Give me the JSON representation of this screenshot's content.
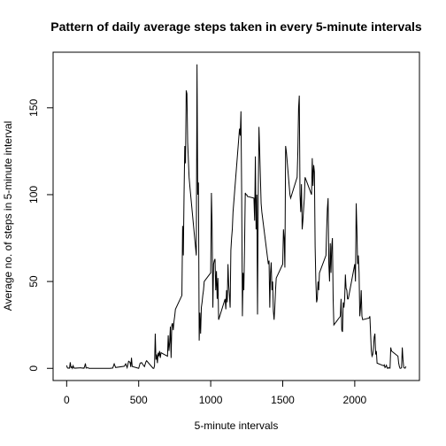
{
  "chart_data": {
    "type": "line",
    "title": "Pattern of daily average steps taken in every 5-minute intervals",
    "x_label": "5-minute intervals",
    "y_label": "Average no. of steps in 5-minute interval",
    "color": "#000000",
    "xlim": [
      -94.2,
      2449.2
    ],
    "xticks": [
      0,
      500,
      1000,
      1500,
      2000
    ],
    "ylim": [
      -7,
      182
    ],
    "yticks": [
      0,
      50,
      100,
      150
    ],
    "x": [
      0,
      5,
      10,
      15,
      20,
      25,
      30,
      35,
      40,
      45,
      50,
      55,
      100,
      105,
      110,
      115,
      120,
      125,
      130,
      135,
      140,
      145,
      150,
      155,
      200,
      230,
      300,
      320,
      330,
      340,
      400,
      410,
      420,
      430,
      440,
      445,
      450,
      455,
      500,
      510,
      520,
      530,
      540,
      550,
      555,
      600,
      605,
      610,
      615,
      620,
      625,
      630,
      635,
      640,
      645,
      650,
      655,
      700,
      705,
      710,
      715,
      720,
      725,
      730,
      735,
      740,
      745,
      750,
      755,
      800,
      805,
      810,
      815,
      820,
      825,
      830,
      835,
      840,
      845,
      850,
      855,
      900,
      905,
      910,
      915,
      920,
      925,
      930,
      935,
      940,
      945,
      950,
      955,
      1000,
      1005,
      1010,
      1015,
      1020,
      1025,
      1030,
      1035,
      1040,
      1045,
      1050,
      1055,
      1100,
      1105,
      1110,
      1115,
      1120,
      1125,
      1130,
      1135,
      1140,
      1145,
      1150,
      1155,
      1200,
      1205,
      1210,
      1215,
      1220,
      1225,
      1230,
      1235,
      1240,
      1245,
      1250,
      1255,
      1300,
      1305,
      1310,
      1315,
      1320,
      1325,
      1330,
      1335,
      1340,
      1345,
      1350,
      1355,
      1400,
      1405,
      1410,
      1415,
      1420,
      1425,
      1430,
      1435,
      1440,
      1445,
      1450,
      1455,
      1500,
      1505,
      1510,
      1515,
      1520,
      1525,
      1530,
      1535,
      1540,
      1545,
      1550,
      1555,
      1600,
      1605,
      1610,
      1615,
      1620,
      1625,
      1630,
      1635,
      1640,
      1645,
      1650,
      1655,
      1700,
      1705,
      1710,
      1715,
      1720,
      1725,
      1730,
      1735,
      1740,
      1745,
      1750,
      1755,
      1800,
      1805,
      1810,
      1815,
      1820,
      1825,
      1830,
      1835,
      1840,
      1845,
      1850,
      1855,
      1900,
      1905,
      1910,
      1915,
      1920,
      1925,
      1930,
      1935,
      1940,
      1945,
      1950,
      1955,
      2000,
      2005,
      2010,
      2015,
      2020,
      2025,
      2030,
      2035,
      2040,
      2045,
      2050,
      2055,
      2100,
      2105,
      2110,
      2115,
      2120,
      2125,
      2130,
      2135,
      2140,
      2145,
      2150,
      2155,
      2200,
      2205,
      2210,
      2215,
      2220,
      2225,
      2230,
      2235,
      2240,
      2245,
      2250,
      2255,
      2300,
      2305,
      2310,
      2315,
      2320,
      2325,
      2330,
      2335,
      2340,
      2345,
      2350,
      2355
    ],
    "values": [
      1.7,
      0.3,
      0.1,
      0.2,
      0.1,
      3.5,
      0.5,
      0.9,
      0,
      1.5,
      0.3,
      0.1,
      0.3,
      0.2,
      0.1,
      0.3,
      0,
      1.1,
      2.8,
      0.2,
      0.2,
      0.4,
      0.3,
      0,
      0,
      0,
      0,
      0.2,
      2.6,
      0.5,
      1.2,
      2.6,
      0.4,
      4.1,
      3.5,
      0.8,
      6.1,
      1.1,
      0,
      3,
      3.3,
      2.1,
      1,
      3.7,
      4.4,
      0,
      0,
      1.5,
      20,
      5,
      8,
      3,
      9,
      7,
      10,
      6,
      9,
      7,
      19,
      10,
      15,
      24,
      6,
      25,
      26,
      22,
      27,
      30,
      34,
      42,
      82,
      65,
      100,
      128,
      118,
      160,
      158,
      130,
      120,
      110,
      105,
      65,
      175,
      100,
      107,
      16,
      32,
      20,
      35,
      38,
      42,
      45,
      50,
      55,
      101,
      80,
      35,
      60,
      62,
      63,
      45,
      56,
      40,
      52,
      28,
      40,
      34,
      45,
      38,
      60,
      48,
      42,
      35,
      68,
      75,
      80,
      90,
      138,
      134,
      148,
      100,
      30,
      55,
      45,
      70,
      101,
      100,
      100,
      99,
      98,
      85,
      122,
      80,
      100,
      31,
      100,
      139,
      125,
      110,
      95,
      90,
      60,
      62,
      35,
      55,
      61,
      45,
      50,
      33,
      28,
      35,
      45,
      52,
      60,
      80,
      75,
      58,
      128,
      125,
      120,
      115,
      110,
      105,
      100,
      98,
      110,
      125,
      150,
      157,
      100,
      90,
      106,
      80,
      85,
      92,
      98,
      110,
      100,
      121,
      105,
      117,
      113,
      70,
      50,
      38,
      40,
      50,
      45,
      55,
      65,
      80,
      92,
      98,
      60,
      50,
      72,
      55,
      70,
      75,
      40,
      25,
      30,
      40,
      22,
      21,
      38,
      35,
      40,
      54,
      46,
      45,
      40,
      40,
      60,
      50,
      95,
      80,
      60,
      65,
      55,
      30,
      35,
      45,
      30,
      28,
      29,
      30,
      20,
      10,
      7,
      8,
      12,
      18,
      20,
      8,
      10,
      3,
      1.5,
      2,
      0.5,
      1,
      1.8,
      0.2,
      0,
      0.5,
      0.1,
      0.1,
      12,
      10,
      7,
      3,
      1,
      0,
      0.1,
      0.3,
      12,
      5,
      0.6,
      0.2,
      0.1,
      1.1
    ]
  }
}
